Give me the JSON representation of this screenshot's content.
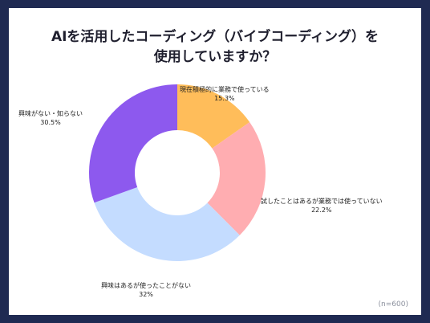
{
  "title_lines": [
    "AIを活用したコーディング（バイブコーディング）を",
    "使用していますか？"
  ],
  "sample_note": "(n=600)",
  "chart_data": {
    "type": "pie",
    "donut": true,
    "title": "AIを活用したコーディング（バイブコーディング）を使用していますか？",
    "unit": "%",
    "slices": [
      {
        "label": "現在積極的に業務で使っている",
        "value": 15.3,
        "display": "15.3%",
        "color": "#ffbd5a"
      },
      {
        "label": "試したことはあるが業務では使っていない",
        "value": 22.2,
        "display": "22.2%",
        "color": "#ffadb1"
      },
      {
        "label": "興味はあるが使ったことがない",
        "value": 32,
        "display": "32%",
        "color": "#c4dcff"
      },
      {
        "label": "興味がない・知らない",
        "value": 30.5,
        "display": "30.5%",
        "color": "#8d59ee"
      }
    ],
    "start_angle_deg": 0,
    "direction": "clockwise",
    "legend": "none"
  }
}
